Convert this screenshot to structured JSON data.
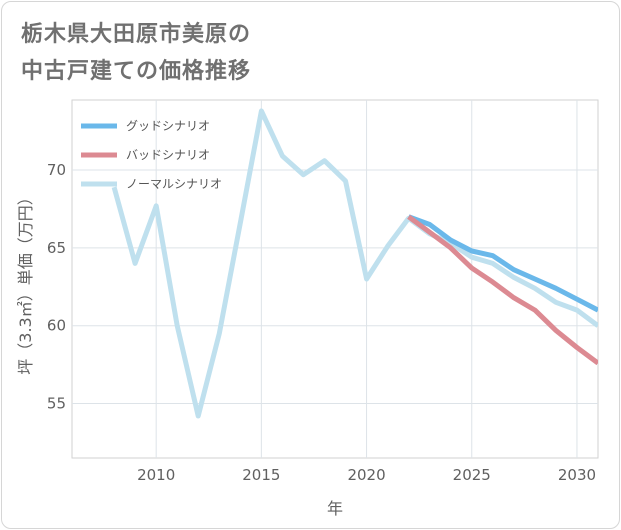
{
  "title_lines": [
    "栃木県大田原市美原の",
    "中古戸建ての価格推移"
  ],
  "chart_data": {
    "type": "line",
    "title": "栃木県大田原市美原の中古戸建ての価格推移",
    "xlabel": "年",
    "ylabel": "坪（3.3㎡）単価（万円）",
    "xlim": [
      2006,
      2031
    ],
    "ylim": [
      51.5,
      74.5
    ],
    "xticks": [
      2010,
      2015,
      2020,
      2025,
      2030
    ],
    "yticks": [
      55,
      60,
      65,
      70
    ],
    "grid": true,
    "legend_position": "top-left",
    "series": [
      {
        "name": "グッドシナリオ",
        "color": "#6ab8ea",
        "x": [
          2022,
          2023,
          2024,
          2025,
          2026,
          2027,
          2028,
          2029,
          2030,
          2031
        ],
        "values": [
          67.0,
          66.5,
          65.5,
          64.8,
          64.5,
          63.6,
          63.0,
          62.4,
          61.7,
          61.0
        ]
      },
      {
        "name": "バッドシナリオ",
        "color": "#dc8a92",
        "x": [
          2022,
          2023,
          2024,
          2025,
          2026,
          2027,
          2028,
          2029,
          2030,
          2031
        ],
        "values": [
          67.0,
          66.0,
          65.0,
          63.7,
          62.8,
          61.8,
          61.0,
          59.7,
          58.6,
          57.6
        ]
      },
      {
        "name": "ノーマルシナリオ",
        "color": "#bfe0ee",
        "x": [
          2008,
          2009,
          2010,
          2011,
          2012,
          2013,
          2014,
          2015,
          2016,
          2017,
          2018,
          2019,
          2020,
          2021,
          2022,
          2023,
          2024,
          2025,
          2026,
          2027,
          2028,
          2029,
          2030,
          2031
        ],
        "values": [
          68.9,
          64.0,
          67.7,
          60.0,
          54.2,
          59.5,
          66.6,
          73.8,
          70.9,
          69.7,
          70.6,
          69.3,
          63.0,
          65.1,
          66.9,
          65.9,
          65.3,
          64.4,
          64.0,
          63.1,
          62.4,
          61.5,
          61.0,
          60.0
        ]
      }
    ]
  }
}
